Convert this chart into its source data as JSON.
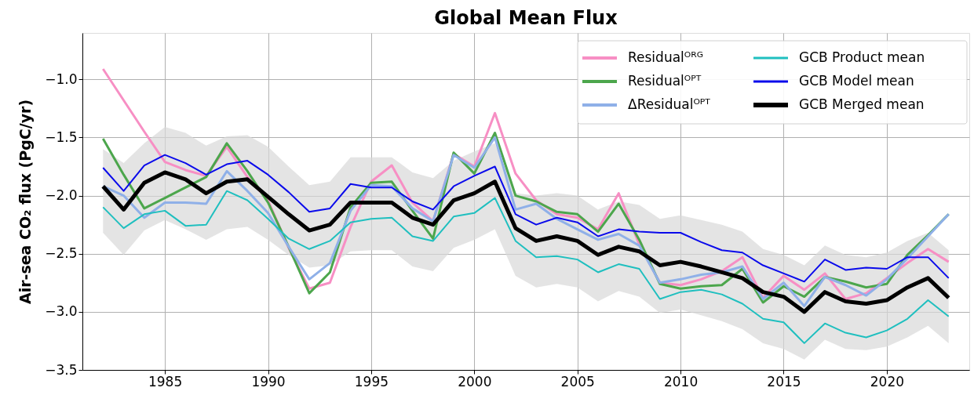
{
  "chart_data": {
    "type": "line",
    "title": "Global Mean Flux",
    "ylabel": "Air-sea CO₂ flux (PgC/yr)",
    "x": [
      1982,
      1983,
      1984,
      1985,
      1986,
      1987,
      1988,
      1989,
      1990,
      1991,
      1992,
      1993,
      1994,
      1995,
      1996,
      1997,
      1998,
      1999,
      2000,
      2001,
      2002,
      2003,
      2004,
      2005,
      2006,
      2007,
      2008,
      2009,
      2010,
      2011,
      2012,
      2013,
      2014,
      2015,
      2016,
      2017,
      2018,
      2019,
      2020,
      2021,
      2022,
      2023
    ],
    "xlim": [
      1981,
      2024
    ],
    "xticks": [
      1985,
      1990,
      1995,
      2000,
      2005,
      2010,
      2015,
      2020
    ],
    "ylim": [
      -3.5,
      -0.6
    ],
    "yticks": [
      {
        "value": -3.5,
        "label": "−3.5"
      },
      {
        "value": -3.0,
        "label": "−3.0"
      },
      {
        "value": -2.5,
        "label": "−2.5"
      },
      {
        "value": -2.0,
        "label": "−2.0"
      },
      {
        "value": -1.5,
        "label": "−1.5"
      },
      {
        "value": -1.0,
        "label": "−1.0"
      }
    ],
    "grid": true,
    "legend": "top right",
    "line_style": "solid",
    "marker": "none",
    "series": [
      {
        "name": "Residualᴼᴿᴳ",
        "color": "#f78fc4",
        "values": [
          -0.91,
          -1.18,
          -1.45,
          -1.71,
          -1.78,
          -1.83,
          -1.58,
          -1.84,
          -2.04,
          -2.45,
          -2.8,
          -2.75,
          -2.27,
          -1.88,
          -1.74,
          -2.06,
          -2.22,
          -1.64,
          -1.75,
          -1.29,
          -1.81,
          -2.04,
          -2.16,
          -2.19,
          -2.29,
          -1.98,
          -2.42,
          -2.75,
          -2.77,
          -2.72,
          -2.65,
          -2.53,
          -2.88,
          -2.69,
          -2.81,
          -2.67,
          -2.89,
          -2.84,
          -2.71,
          -2.58,
          -2.46,
          -2.57
        ]
      },
      {
        "name": "Residualᴼᴾᵀ",
        "color": "#4ca64c",
        "values": [
          -1.51,
          -1.82,
          -2.11,
          -2.02,
          -1.93,
          -1.84,
          -1.55,
          -1.79,
          -2.06,
          -2.44,
          -2.84,
          -2.66,
          -2.1,
          -1.89,
          -1.88,
          -2.13,
          -2.37,
          -1.63,
          -1.81,
          -1.46,
          -2.0,
          -2.05,
          -2.14,
          -2.16,
          -2.31,
          -2.07,
          -2.38,
          -2.76,
          -2.8,
          -2.78,
          -2.77,
          -2.63,
          -2.92,
          -2.78,
          -2.87,
          -2.7,
          -2.74,
          -2.79,
          -2.76,
          -2.51,
          -2.34,
          -2.16
        ]
      },
      {
        "name": "ΔResidualᴼᴾᵀ",
        "color": "#8fb0e8",
        "values": [
          -1.92,
          -2.0,
          -2.19,
          -2.06,
          -2.06,
          -2.07,
          -1.79,
          -1.96,
          -2.15,
          -2.44,
          -2.72,
          -2.58,
          -2.13,
          -1.91,
          -1.92,
          -2.11,
          -2.22,
          -1.65,
          -1.76,
          -1.5,
          -2.12,
          -2.07,
          -2.2,
          -2.29,
          -2.38,
          -2.33,
          -2.43,
          -2.75,
          -2.72,
          -2.68,
          -2.66,
          -2.61,
          -2.89,
          -2.75,
          -2.95,
          -2.7,
          -2.77,
          -2.86,
          -2.72,
          -2.54,
          -2.35,
          -2.16
        ]
      },
      {
        "name": "GCB Product mean",
        "color": "#1fbfbf",
        "values": [
          -2.1,
          -2.28,
          -2.16,
          -2.13,
          -2.26,
          -2.25,
          -1.96,
          -2.04,
          -2.2,
          -2.37,
          -2.46,
          -2.39,
          -2.23,
          -2.2,
          -2.19,
          -2.35,
          -2.39,
          -2.18,
          -2.15,
          -2.02,
          -2.39,
          -2.53,
          -2.52,
          -2.55,
          -2.66,
          -2.59,
          -2.63,
          -2.89,
          -2.83,
          -2.81,
          -2.85,
          -2.93,
          -3.06,
          -3.09,
          -3.27,
          -3.1,
          -3.18,
          -3.22,
          -3.16,
          -3.06,
          -2.9,
          -3.04
        ]
      },
      {
        "name": "GCB Model mean",
        "color": "#0a0aeb",
        "values": [
          -1.76,
          -1.96,
          -1.74,
          -1.65,
          -1.72,
          -1.82,
          -1.73,
          -1.7,
          -1.82,
          -1.97,
          -2.14,
          -2.11,
          -1.9,
          -1.93,
          -1.93,
          -2.05,
          -2.12,
          -1.92,
          -1.83,
          -1.75,
          -2.16,
          -2.25,
          -2.19,
          -2.23,
          -2.35,
          -2.29,
          -2.31,
          -2.32,
          -2.32,
          -2.4,
          -2.47,
          -2.49,
          -2.6,
          -2.67,
          -2.74,
          -2.55,
          -2.64,
          -2.62,
          -2.63,
          -2.53,
          -2.53,
          -2.71
        ]
      },
      {
        "name": "GCB Merged mean",
        "color": "#000000",
        "values": [
          -1.92,
          -2.12,
          -1.89,
          -1.8,
          -1.86,
          -1.98,
          -1.88,
          -1.86,
          -2.01,
          -2.16,
          -2.3,
          -2.25,
          -2.06,
          -2.06,
          -2.06,
          -2.19,
          -2.25,
          -2.04,
          -1.98,
          -1.88,
          -2.28,
          -2.39,
          -2.35,
          -2.39,
          -2.51,
          -2.44,
          -2.48,
          -2.6,
          -2.57,
          -2.61,
          -2.66,
          -2.71,
          -2.83,
          -2.87,
          -3.0,
          -2.83,
          -2.91,
          -2.93,
          -2.9,
          -2.79,
          -2.71,
          -2.88
        ],
        "lower": [
          -2.32,
          -2.51,
          -2.3,
          -2.21,
          -2.29,
          -2.38,
          -2.29,
          -2.27,
          -2.38,
          -2.51,
          -2.62,
          -2.6,
          -2.48,
          -2.47,
          -2.47,
          -2.61,
          -2.65,
          -2.45,
          -2.38,
          -2.29,
          -2.69,
          -2.79,
          -2.76,
          -2.79,
          -2.91,
          -2.82,
          -2.87,
          -3.01,
          -2.98,
          -3.03,
          -3.08,
          -3.15,
          -3.27,
          -3.32,
          -3.41,
          -3.24,
          -3.32,
          -3.33,
          -3.3,
          -3.22,
          -3.12,
          -3.27
        ],
        "upper": [
          -1.6,
          -1.72,
          -1.55,
          -1.41,
          -1.46,
          -1.57,
          -1.49,
          -1.48,
          -1.58,
          -1.75,
          -1.91,
          -1.88,
          -1.67,
          -1.67,
          -1.67,
          -1.8,
          -1.85,
          -1.7,
          -1.62,
          -1.55,
          -1.98,
          -2.0,
          -1.98,
          -2.0,
          -2.12,
          -2.05,
          -2.08,
          -2.2,
          -2.17,
          -2.21,
          -2.25,
          -2.31,
          -2.46,
          -2.51,
          -2.6,
          -2.43,
          -2.51,
          -2.53,
          -2.49,
          -2.39,
          -2.32,
          -2.47
        ]
      }
    ]
  }
}
